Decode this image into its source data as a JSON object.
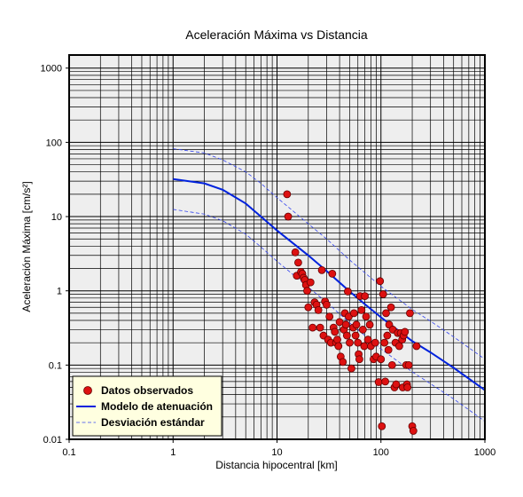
{
  "chart_data": {
    "type": "scatter",
    "title": "Aceleración Máxima vs Distancia",
    "xlabel": "Distancia hipocentral [km]",
    "ylabel": "Aceleración Máxima [cm/s²]",
    "x_scale": "log",
    "y_scale": "log",
    "xlim": [
      0.1,
      1000
    ],
    "ylim": [
      0.01,
      1500
    ],
    "x_ticks": [
      0.1,
      1,
      10,
      100,
      1000
    ],
    "x_tick_labels": [
      "0.1",
      "1",
      "10",
      "100",
      "1000"
    ],
    "y_ticks": [
      0.01,
      0.1,
      1,
      10,
      100,
      1000
    ],
    "y_tick_labels": [
      "0.01",
      "0.1",
      "1",
      "10",
      "100",
      "1000"
    ],
    "grid": true,
    "legend_position": "bottom-left",
    "colors": {
      "points": "#dd1111",
      "point_edge": "#660000",
      "model": "#0022dd",
      "std": "#3344ee",
      "plot_bg": "#eeeeee",
      "legend_bg": "#ffffe0"
    },
    "series": [
      {
        "name": "Datos observados",
        "type": "scatter",
        "points": [
          [
            12.5,
            20
          ],
          [
            12.8,
            10
          ],
          [
            15,
            3.3
          ],
          [
            15.5,
            1.6
          ],
          [
            16,
            2.4
          ],
          [
            17,
            1.8
          ],
          [
            17.5,
            1.7
          ],
          [
            18,
            1.5
          ],
          [
            18.5,
            1.4
          ],
          [
            19,
            1.2
          ],
          [
            19.5,
            1.0
          ],
          [
            20,
            0.6
          ],
          [
            21,
            1.3
          ],
          [
            22,
            0.32
          ],
          [
            23,
            0.7
          ],
          [
            24,
            0.65
          ],
          [
            25,
            0.55
          ],
          [
            26,
            0.32
          ],
          [
            27,
            1.9
          ],
          [
            28,
            0.25
          ],
          [
            29,
            0.72
          ],
          [
            30,
            0.65
          ],
          [
            31,
            0.22
          ],
          [
            32,
            0.45
          ],
          [
            33,
            0.2
          ],
          [
            34,
            1.7
          ],
          [
            35,
            0.32
          ],
          [
            36,
            0.28
          ],
          [
            37,
            0.2
          ],
          [
            38,
            0.22
          ],
          [
            39,
            0.18
          ],
          [
            40,
            0.38
          ],
          [
            41,
            0.13
          ],
          [
            43,
            0.11
          ],
          [
            44,
            0.3
          ],
          [
            45,
            0.5
          ],
          [
            46,
            0.35
          ],
          [
            47,
            0.25
          ],
          [
            48,
            0.98
          ],
          [
            49,
            0.45
          ],
          [
            50,
            0.2
          ],
          [
            52,
            0.09
          ],
          [
            54,
            0.32
          ],
          [
            55,
            0.5
          ],
          [
            57,
            0.25
          ],
          [
            58,
            0.35
          ],
          [
            60,
            0.2
          ],
          [
            61,
            0.14
          ],
          [
            62,
            0.12
          ],
          [
            63,
            0.85
          ],
          [
            65,
            0.55
          ],
          [
            67,
            0.3
          ],
          [
            69,
            0.18
          ],
          [
            70,
            0.85
          ],
          [
            72,
            0.45
          ],
          [
            75,
            0.22
          ],
          [
            78,
            0.35
          ],
          [
            80,
            0.18
          ],
          [
            85,
            0.12
          ],
          [
            88,
            0.2
          ],
          [
            90,
            0.13
          ],
          [
            95,
            0.059
          ],
          [
            98,
            1.35
          ],
          [
            100,
            0.12
          ],
          [
            102,
            0.015
          ],
          [
            105,
            0.9
          ],
          [
            108,
            0.2
          ],
          [
            110,
            0.06
          ],
          [
            112,
            0.5
          ],
          [
            115,
            0.25
          ],
          [
            118,
            0.16
          ],
          [
            120,
            0.35
          ],
          [
            125,
            0.6
          ],
          [
            128,
            0.1
          ],
          [
            130,
            0.3
          ],
          [
            135,
            0.05
          ],
          [
            138,
            0.2
          ],
          [
            140,
            0.055
          ],
          [
            145,
            0.27
          ],
          [
            150,
            0.18
          ],
          [
            155,
            0.27
          ],
          [
            160,
            0.22
          ],
          [
            162,
            0.05
          ],
          [
            165,
            0.25
          ],
          [
            170,
            0.28
          ],
          [
            175,
            0.1
          ],
          [
            178,
            0.055
          ],
          [
            180,
            0.05
          ],
          [
            185,
            0.1
          ],
          [
            190,
            0.5
          ],
          [
            200,
            0.015
          ],
          [
            205,
            0.013
          ],
          [
            220,
            0.18
          ]
        ]
      },
      {
        "name": "Modelo de atenuación",
        "type": "line",
        "points": [
          [
            1,
            32
          ],
          [
            2,
            28
          ],
          [
            3,
            23
          ],
          [
            5,
            15
          ],
          [
            7,
            10
          ],
          [
            10,
            6.5
          ],
          [
            20,
            3.0
          ],
          [
            30,
            1.85
          ],
          [
            50,
            0.98
          ],
          [
            70,
            0.66
          ],
          [
            100,
            0.44
          ],
          [
            200,
            0.21
          ],
          [
            300,
            0.148
          ],
          [
            500,
            0.092
          ],
          [
            1000,
            0.046
          ]
        ]
      },
      {
        "name": "Desviación estándar",
        "type": "line",
        "dashed": true,
        "points": [
          [
            1,
            82
          ],
          [
            2,
            72
          ],
          [
            3,
            58
          ],
          [
            5,
            40
          ],
          [
            7,
            28
          ],
          [
            10,
            18
          ],
          [
            20,
            8.0
          ],
          [
            30,
            5.0
          ],
          [
            50,
            2.6
          ],
          [
            70,
            1.75
          ],
          [
            100,
            1.15
          ],
          [
            200,
            0.56
          ],
          [
            300,
            0.39
          ],
          [
            500,
            0.24
          ],
          [
            1000,
            0.12
          ]
        ]
      },
      {
        "name": "",
        "type": "line",
        "dashed": true,
        "points": [
          [
            1,
            12.5
          ],
          [
            2,
            10.8
          ],
          [
            3,
            8.8
          ],
          [
            5,
            5.8
          ],
          [
            7,
            3.9
          ],
          [
            10,
            2.5
          ],
          [
            20,
            1.12
          ],
          [
            30,
            0.7
          ],
          [
            50,
            0.37
          ],
          [
            70,
            0.25
          ],
          [
            100,
            0.165
          ],
          [
            200,
            0.081
          ],
          [
            300,
            0.056
          ],
          [
            500,
            0.035
          ],
          [
            1000,
            0.0175
          ]
        ]
      }
    ],
    "legend": [
      {
        "label": "Datos observados",
        "symbol": "marker"
      },
      {
        "label": "Modelo de atenuación",
        "symbol": "line"
      },
      {
        "label": "Desviación estándar",
        "symbol": "dashed"
      }
    ]
  }
}
